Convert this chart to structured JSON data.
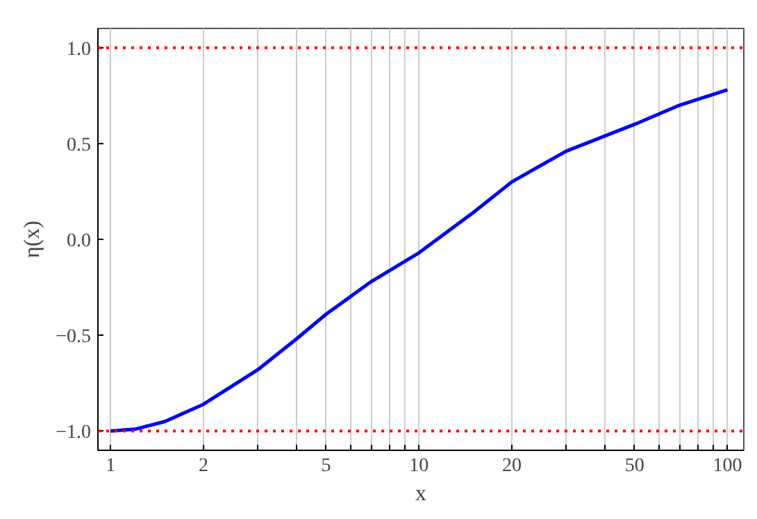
{
  "chart_data": {
    "type": "line",
    "xlabel": "x",
    "ylabel": "η(x)",
    "log": "x",
    "grid": "x",
    "xlim": [
      0.91,
      113
    ],
    "ylim": [
      -1.1,
      1.1
    ],
    "xticks": [
      1,
      2,
      {
        "value": 3,
        "label": null
      },
      {
        "value": 4,
        "label": null
      },
      5,
      {
        "value": 6,
        "label": null
      },
      {
        "value": 7,
        "label": null
      },
      {
        "value": 8,
        "label": null
      },
      {
        "value": 9,
        "label": null
      },
      10,
      20,
      {
        "value": 30,
        "label": null
      },
      {
        "value": 40,
        "label": null
      },
      50,
      {
        "value": 60,
        "label": null
      },
      {
        "value": 70,
        "label": null
      },
      {
        "value": 80,
        "label": null
      },
      {
        "value": 90,
        "label": null
      },
      100
    ],
    "yticks": [
      {
        "value": -1,
        "label": "−1.0"
      },
      {
        "value": -0.5,
        "label": "−0.5"
      },
      {
        "value": 0,
        "label": "0.0"
      },
      {
        "value": 0.5,
        "label": "0.5"
      },
      {
        "value": 1,
        "label": "1.0"
      }
    ],
    "x": [
      1,
      1.2,
      1.5,
      2,
      3,
      4,
      5,
      7,
      10,
      15,
      20,
      30,
      50,
      70,
      100
    ],
    "series": [
      {
        "color": "#0000ff",
        "values": [
          -1.0,
          -0.99,
          -0.95,
          -0.86,
          -0.68,
          -0.52,
          -0.39,
          -0.22,
          -0.07,
          0.14,
          0.3,
          0.46,
          0.6,
          0.7,
          0.78
        ]
      }
    ],
    "ref_lines": [
      {
        "axis": "y",
        "value": 1,
        "color": "#ff0000",
        "line_style": "dotted"
      },
      {
        "axis": "y",
        "value": -1,
        "color": "#ff0000",
        "line_style": "dotted"
      }
    ]
  }
}
